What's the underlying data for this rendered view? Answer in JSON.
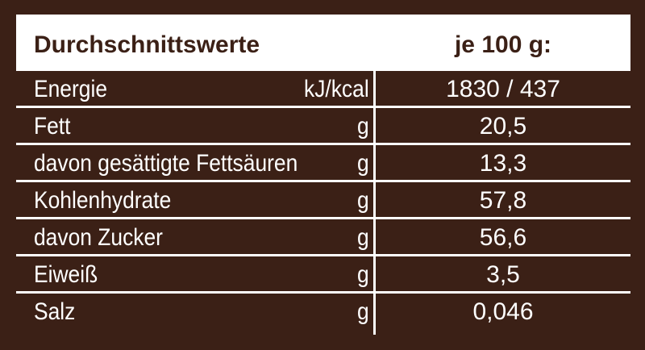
{
  "header": {
    "title": "Durchschnittswerte",
    "column": "je 100 g:"
  },
  "table": {
    "rows": [
      [
        "Energie",
        "kJ/kcal",
        "1830 / 437"
      ],
      [
        "Fett",
        "g",
        "20,5"
      ],
      [
        "davon gesättigte Fettsäuren",
        "g",
        "13,3"
      ],
      [
        "Kohlenhydrate",
        "g",
        "57,8"
      ],
      [
        "davon Zucker",
        "g",
        "56,6"
      ],
      [
        "Eiweiß",
        "g",
        "3,5"
      ],
      [
        "Salz",
        "g",
        "0,046"
      ]
    ]
  }
}
